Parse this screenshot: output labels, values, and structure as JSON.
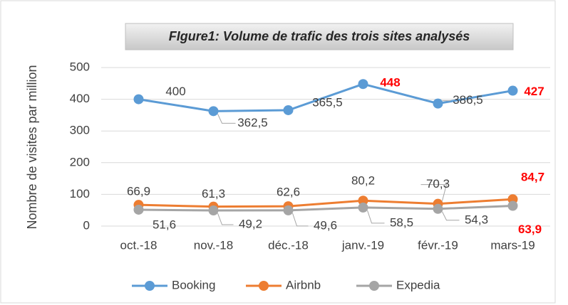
{
  "chart_data": {
    "type": "line",
    "title": "FIgure1: Volume de trafic des trois sites analysés",
    "y_label": "Nombre de visites par million",
    "categories": [
      "oct.-18",
      "nov.-18",
      "déc.-18",
      "janv.-19",
      "févr.-19",
      "mars-19"
    ],
    "series": [
      {
        "name": "Booking",
        "color": "#5b9bd5",
        "values": [
          400,
          362.5,
          365.5,
          448,
          386.5,
          427
        ],
        "value_labels": [
          "400",
          "362,5",
          "365,5",
          "448",
          "386,5",
          "427"
        ],
        "value_label_colors": [
          "#404040",
          "#404040",
          "#404040",
          "#ff0000",
          "#404040",
          "#ff0000"
        ]
      },
      {
        "name": "Airbnb",
        "color": "#ed7d31",
        "values": [
          66.9,
          61.3,
          62.6,
          80.2,
          70.3,
          84.7
        ],
        "value_labels": [
          "66,9",
          "61,3",
          "62,6",
          "80,2",
          "70,3",
          "84,7"
        ],
        "value_label_colors": [
          "#404040",
          "#404040",
          "#404040",
          "#404040",
          "#404040",
          "#ff0000"
        ]
      },
      {
        "name": "Expedia",
        "color": "#a5a5a5",
        "values": [
          51.6,
          49.2,
          49.6,
          58.5,
          54.3,
          63.9
        ],
        "value_labels": [
          "51,6",
          "49,2",
          "49,6",
          "58,5",
          "54,3",
          "63,9"
        ],
        "value_label_colors": [
          "#404040",
          "#404040",
          "#404040",
          "#404040",
          "#404040",
          "#ff0000"
        ]
      }
    ],
    "ylim": [
      0,
      500
    ],
    "yticks": [
      0,
      100,
      200,
      300,
      400,
      500
    ],
    "grid": true,
    "legend": "bottom"
  }
}
